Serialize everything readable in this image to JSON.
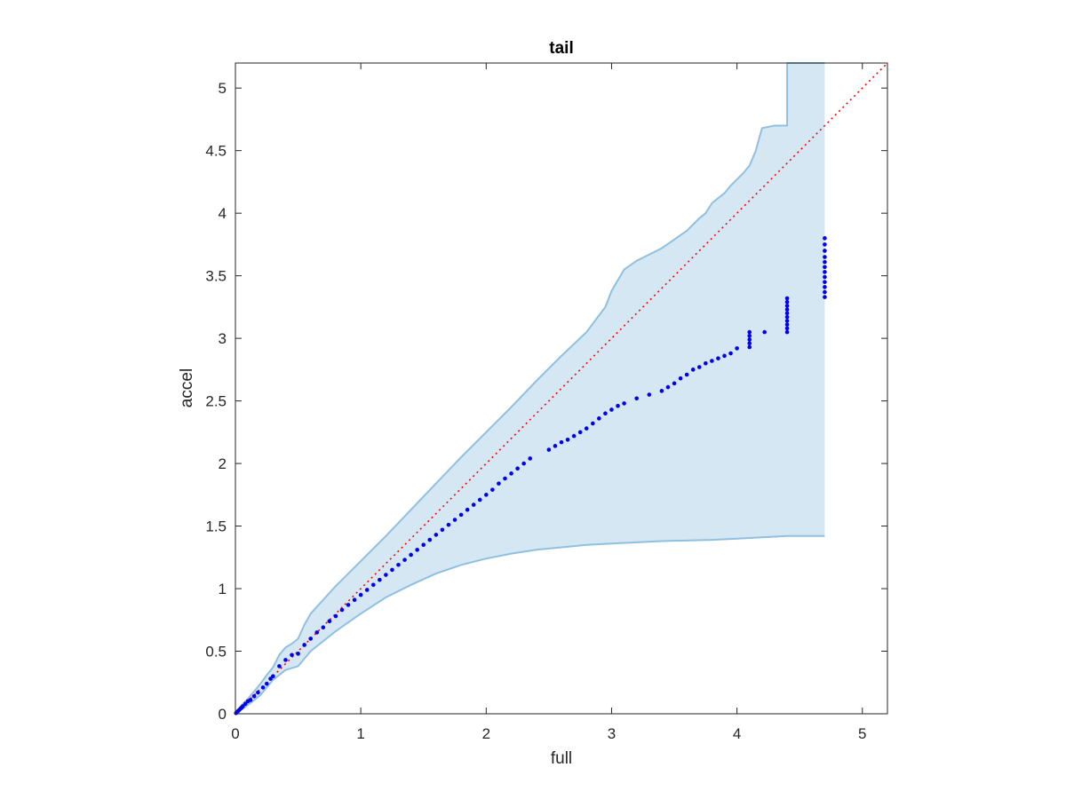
{
  "chart_data": {
    "type": "scatter",
    "title": "tail",
    "xlabel": "full",
    "ylabel": "accel",
    "xlim": [
      0,
      5.2
    ],
    "ylim": [
      0,
      5.2
    ],
    "xticks": [
      0,
      1,
      2,
      3,
      4,
      5
    ],
    "xtick_labels": [
      "0",
      "1",
      "2",
      "3",
      "4",
      "5"
    ],
    "yticks": [
      0,
      0.5,
      1,
      1.5,
      2,
      2.5,
      3,
      3.5,
      4,
      4.5,
      5
    ],
    "ytick_labels": [
      "0",
      "0.5",
      "1",
      "1.5",
      "2",
      "2.5",
      "3",
      "3.5",
      "4",
      "4.5",
      "5"
    ],
    "grid": false,
    "colors": {
      "band_fill": "#d6e7f4",
      "band_edge": "#8fc0e0",
      "points": "#0000ee",
      "reference": "#ff0000",
      "axes": "#262626"
    },
    "band": {
      "upper": [
        [
          0,
          0
        ],
        [
          0.05,
          0.07
        ],
        [
          0.1,
          0.12
        ],
        [
          0.15,
          0.18
        ],
        [
          0.2,
          0.24
        ],
        [
          0.25,
          0.31
        ],
        [
          0.3,
          0.37
        ],
        [
          0.35,
          0.47
        ],
        [
          0.4,
          0.53
        ],
        [
          0.45,
          0.56
        ],
        [
          0.5,
          0.6
        ],
        [
          0.55,
          0.71
        ],
        [
          0.6,
          0.8
        ],
        [
          0.7,
          0.91
        ],
        [
          0.8,
          1.02
        ],
        [
          1.0,
          1.22
        ],
        [
          1.2,
          1.42
        ],
        [
          1.4,
          1.63
        ],
        [
          1.6,
          1.84
        ],
        [
          1.8,
          2.05
        ],
        [
          2.0,
          2.25
        ],
        [
          2.2,
          2.45
        ],
        [
          2.4,
          2.66
        ],
        [
          2.6,
          2.86
        ],
        [
          2.8,
          3.05
        ],
        [
          2.95,
          3.25
        ],
        [
          3.0,
          3.38
        ],
        [
          3.1,
          3.55
        ],
        [
          3.2,
          3.62
        ],
        [
          3.4,
          3.72
        ],
        [
          3.6,
          3.86
        ],
        [
          3.7,
          3.96
        ],
        [
          3.75,
          4.0
        ],
        [
          3.8,
          4.08
        ],
        [
          3.85,
          4.12
        ],
        [
          3.9,
          4.16
        ],
        [
          3.95,
          4.22
        ],
        [
          4.0,
          4.27
        ],
        [
          4.05,
          4.32
        ],
        [
          4.1,
          4.38
        ],
        [
          4.15,
          4.5
        ],
        [
          4.2,
          4.68
        ],
        [
          4.3,
          4.7
        ],
        [
          4.4,
          4.7
        ],
        [
          4.4,
          5.2
        ],
        [
          4.7,
          5.2
        ]
      ],
      "lower": [
        [
          0,
          0
        ],
        [
          0.1,
          0.07
        ],
        [
          0.2,
          0.15
        ],
        [
          0.3,
          0.27
        ],
        [
          0.4,
          0.35
        ],
        [
          0.5,
          0.38
        ],
        [
          0.6,
          0.5
        ],
        [
          0.8,
          0.66
        ],
        [
          1.0,
          0.8
        ],
        [
          1.2,
          0.93
        ],
        [
          1.4,
          1.03
        ],
        [
          1.6,
          1.12
        ],
        [
          1.8,
          1.19
        ],
        [
          2.0,
          1.24
        ],
        [
          2.2,
          1.28
        ],
        [
          2.4,
          1.31
        ],
        [
          2.6,
          1.33
        ],
        [
          2.8,
          1.35
        ],
        [
          3.0,
          1.36
        ],
        [
          3.4,
          1.38
        ],
        [
          3.8,
          1.39
        ],
        [
          4.0,
          1.4
        ],
        [
          4.4,
          1.42
        ],
        [
          4.7,
          1.42
        ]
      ]
    },
    "series": [
      {
        "values": [
          [
            0.005,
            0.005
          ],
          [
            0.01,
            0.01
          ],
          [
            0.02,
            0.02
          ],
          [
            0.03,
            0.03
          ],
          [
            0.04,
            0.04
          ],
          [
            0.05,
            0.05
          ],
          [
            0.06,
            0.06
          ],
          [
            0.08,
            0.08
          ],
          [
            0.1,
            0.1
          ],
          [
            0.12,
            0.11
          ],
          [
            0.15,
            0.14
          ],
          [
            0.18,
            0.17
          ],
          [
            0.22,
            0.21
          ],
          [
            0.25,
            0.24
          ],
          [
            0.28,
            0.28
          ],
          [
            0.3,
            0.3
          ],
          [
            0.35,
            0.38
          ],
          [
            0.4,
            0.43
          ],
          [
            0.45,
            0.47
          ],
          [
            0.5,
            0.48
          ],
          [
            0.55,
            0.55
          ],
          [
            0.6,
            0.6
          ],
          [
            0.65,
            0.65
          ],
          [
            0.7,
            0.69
          ],
          [
            0.75,
            0.74
          ],
          [
            0.8,
            0.78
          ],
          [
            0.85,
            0.83
          ],
          [
            0.9,
            0.87
          ],
          [
            0.95,
            0.91
          ],
          [
            1.0,
            0.95
          ],
          [
            1.05,
            0.99
          ],
          [
            1.1,
            1.03
          ],
          [
            1.15,
            1.07
          ],
          [
            1.2,
            1.11
          ],
          [
            1.25,
            1.15
          ],
          [
            1.3,
            1.19
          ],
          [
            1.35,
            1.23
          ],
          [
            1.4,
            1.27
          ],
          [
            1.45,
            1.31
          ],
          [
            1.5,
            1.35
          ],
          [
            1.55,
            1.39
          ],
          [
            1.6,
            1.43
          ],
          [
            1.65,
            1.47
          ],
          [
            1.7,
            1.51
          ],
          [
            1.75,
            1.55
          ],
          [
            1.8,
            1.59
          ],
          [
            1.85,
            1.63
          ],
          [
            1.9,
            1.67
          ],
          [
            1.95,
            1.71
          ],
          [
            2.0,
            1.75
          ],
          [
            2.05,
            1.79
          ],
          [
            2.1,
            1.84
          ],
          [
            2.15,
            1.88
          ],
          [
            2.2,
            1.92
          ],
          [
            2.25,
            1.96
          ],
          [
            2.3,
            2.0
          ],
          [
            2.35,
            2.04
          ],
          [
            2.5,
            2.11
          ],
          [
            2.55,
            2.14
          ],
          [
            2.6,
            2.17
          ],
          [
            2.65,
            2.19
          ],
          [
            2.7,
            2.22
          ],
          [
            2.75,
            2.25
          ],
          [
            2.8,
            2.28
          ],
          [
            2.85,
            2.32
          ],
          [
            2.9,
            2.36
          ],
          [
            2.95,
            2.4
          ],
          [
            3.0,
            2.43
          ],
          [
            3.05,
            2.46
          ],
          [
            3.1,
            2.48
          ],
          [
            3.2,
            2.52
          ],
          [
            3.3,
            2.55
          ],
          [
            3.4,
            2.58
          ],
          [
            3.45,
            2.61
          ],
          [
            3.5,
            2.64
          ],
          [
            3.55,
            2.68
          ],
          [
            3.6,
            2.71
          ],
          [
            3.65,
            2.75
          ],
          [
            3.7,
            2.77
          ],
          [
            3.75,
            2.8
          ],
          [
            3.8,
            2.82
          ],
          [
            3.85,
            2.84
          ],
          [
            3.9,
            2.86
          ],
          [
            3.95,
            2.88
          ],
          [
            4.0,
            2.92
          ],
          [
            4.1,
            2.93
          ],
          [
            4.1,
            2.96
          ],
          [
            4.1,
            2.99
          ],
          [
            4.1,
            3.02
          ],
          [
            4.1,
            3.05
          ],
          [
            4.22,
            3.05
          ],
          [
            4.4,
            3.05
          ],
          [
            4.4,
            3.08
          ],
          [
            4.4,
            3.11
          ],
          [
            4.4,
            3.14
          ],
          [
            4.4,
            3.17
          ],
          [
            4.4,
            3.2
          ],
          [
            4.4,
            3.23
          ],
          [
            4.4,
            3.26
          ],
          [
            4.4,
            3.29
          ],
          [
            4.4,
            3.32
          ],
          [
            4.7,
            3.33
          ],
          [
            4.7,
            3.37
          ],
          [
            4.7,
            3.41
          ],
          [
            4.7,
            3.45
          ],
          [
            4.7,
            3.49
          ],
          [
            4.7,
            3.53
          ],
          [
            4.7,
            3.57
          ],
          [
            4.7,
            3.61
          ],
          [
            4.7,
            3.65
          ],
          [
            4.7,
            3.7
          ],
          [
            4.7,
            3.75
          ],
          [
            4.7,
            3.8
          ]
        ]
      }
    ],
    "reference_line": [
      [
        0,
        0
      ],
      [
        5.2,
        5.2
      ]
    ]
  }
}
